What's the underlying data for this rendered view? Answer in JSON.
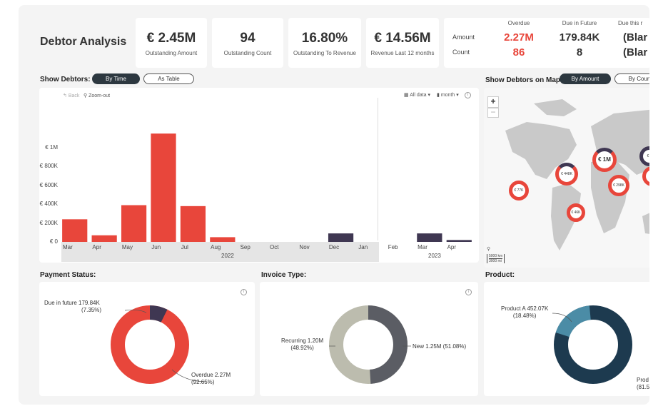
{
  "app": {
    "title": "Debtor Analysis"
  },
  "kpis": [
    {
      "value": "€ 2.45M",
      "label": "Outstanding Amount"
    },
    {
      "value": "94",
      "label": "Outstanding Count"
    },
    {
      "value": "16.80%",
      "label": "Outstanding To Revenue"
    },
    {
      "value": "€ 14.56M",
      "label": "Revenue Last 12 months"
    }
  ],
  "summary": {
    "row_labels": {
      "amount": "Amount",
      "count": "Count"
    },
    "columns": [
      {
        "header": "Overdue",
        "amount": "2.27M",
        "count": "86",
        "color": "#e8463b"
      },
      {
        "header": "Due in Future",
        "amount": "179.84K",
        "count": "8",
        "color": "#333333"
      },
      {
        "header": "Due this r",
        "amount": "(Blar",
        "count": "(Blar",
        "color": "#333333"
      }
    ]
  },
  "debtors": {
    "label": "Show Debtors:",
    "toggle": {
      "by_time": "By Time",
      "as_table": "As Table"
    }
  },
  "chart_toolbar": {
    "back": "Back",
    "zoom_out": "Zoom-out",
    "all_data": "All data",
    "granularity": "month"
  },
  "chart_data": {
    "type": "bar",
    "categories": [
      "Mar",
      "Apr",
      "May",
      "Jun",
      "Jul",
      "Aug",
      "Sep",
      "Oct",
      "Nov",
      "Dec",
      "Jan",
      "Feb",
      "Mar",
      "Apr"
    ],
    "year_labels": [
      "2022",
      "2023"
    ],
    "series": [
      {
        "values": [
          240000,
          70000,
          390000,
          1150000,
          380000,
          50000,
          0,
          0,
          0,
          0,
          0,
          0,
          0,
          0
        ],
        "color": "#e8463b"
      },
      {
        "values": [
          0,
          0,
          0,
          0,
          0,
          0,
          0,
          0,
          0,
          90000,
          0,
          0,
          90000,
          20000
        ],
        "color": "#3f3752"
      }
    ],
    "yticks": [
      "€ 0",
      "€ 200K",
      "€ 400K",
      "€ 600K",
      "€ 800K",
      "€ 1M"
    ],
    "ytick_values": [
      0,
      200000,
      400000,
      600000,
      800000,
      1000000
    ],
    "ylim": [
      0,
      1250000
    ]
  },
  "map": {
    "label": "Show Debtors on Map:",
    "toggle": {
      "by_amount": "By Amount",
      "by_count": "By Coun"
    },
    "zoom_in": "+",
    "zoom_out": "−",
    "scale": {
      "km": "5000 km",
      "mi": "3000 mi"
    },
    "bubbles": [
      {
        "label": "€ 1M"
      },
      {
        "label": "€ 448K"
      },
      {
        "label": "€ 298K"
      },
      {
        "label": "€ 77K"
      },
      {
        "label": "€ 46K"
      },
      {
        "label": "€ 5"
      },
      {
        "label": "€"
      }
    ]
  },
  "payment_status": {
    "title": "Payment Status:",
    "future": {
      "line1": "Due in future 179.84K",
      "line2": "(7.35%)",
      "value": 7.35,
      "color": "#3f3752"
    },
    "overdue": {
      "line1": "Overdue 2.27M",
      "line2": "(92.65%)",
      "value": 92.65,
      "color": "#e8463b"
    }
  },
  "invoice_type": {
    "title": "Invoice Type:",
    "recurring": {
      "line1": "Recurring 1.20M",
      "line2": "(48.92%)",
      "value": 48.92,
      "color": "#5b5d64"
    },
    "new": {
      "line1": "New 1.25M (51.08%)",
      "value": 51.08,
      "color": "#bcbcae"
    }
  },
  "product": {
    "title": "Product:",
    "a": {
      "line1": "Product A 452.07K",
      "line2": "(18.48%)",
      "value": 18.48,
      "color": "#4b8ca6"
    },
    "b": {
      "line1": "Prod",
      "line2": "(81.5",
      "value": 81.52,
      "color": "#1d3a4f"
    }
  }
}
